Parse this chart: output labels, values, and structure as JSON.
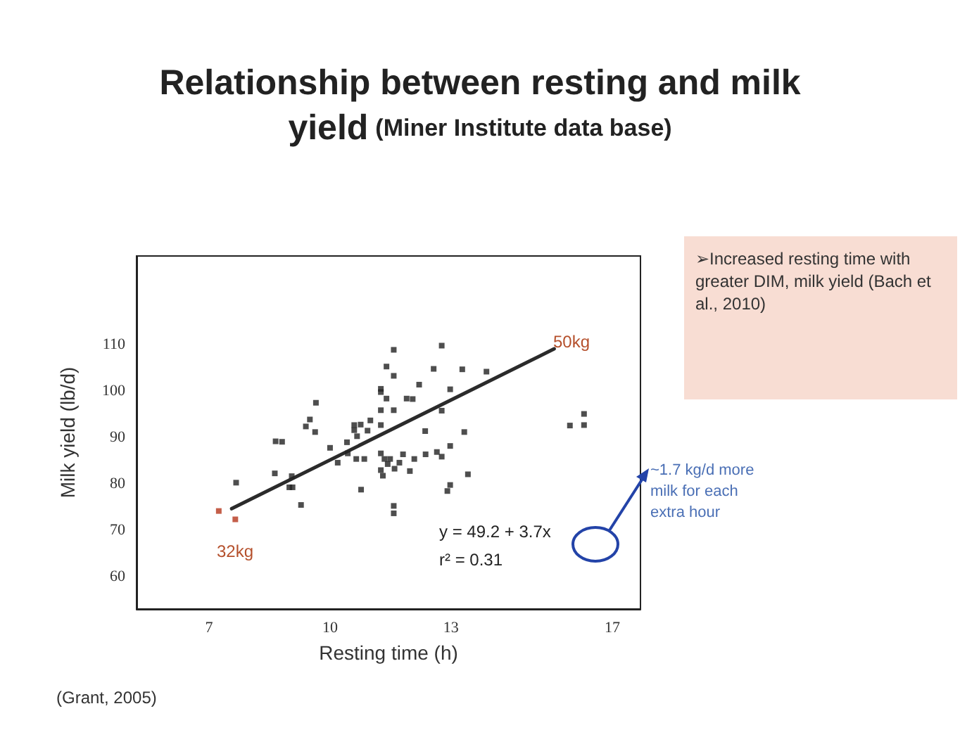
{
  "chart_data": {
    "type": "scatter",
    "title": "Relationship between resting and milk yield",
    "subtitle": "(Miner Institute data base)",
    "xlabel": "Resting time (h)",
    "ylabel": "Milk yield (lb/d)",
    "xlim": [
      5.2,
      17.7
    ],
    "xticks": [
      7,
      10,
      13,
      17
    ],
    "ylim": [
      53,
      129
    ],
    "yticks": [
      60,
      70,
      80,
      90,
      100,
      110
    ],
    "grid": false,
    "series": [
      {
        "marker": "square",
        "color": "#222222",
        "x": [
          11.58,
          12.77,
          11.4,
          11.58,
          12.57,
          13.28,
          13.88,
          12.21,
          12.98,
          11.26,
          11.26,
          11.4,
          11.9,
          12.05,
          9.65,
          11.26,
          11.58,
          12.77,
          9.5,
          9.4,
          9.63,
          11.0,
          10.6,
          10.76,
          10.6,
          10.93,
          11.26,
          12.36,
          13.33,
          15.95,
          16.3,
          16.3,
          10.67,
          8.65,
          8.81,
          10.42,
          10.0,
          10.44,
          10.65,
          10.85,
          10.19,
          11.26,
          11.35,
          11.49,
          11.81,
          12.09,
          12.37,
          12.65,
          12.77,
          12.98,
          11.43,
          11.6,
          11.72,
          11.26,
          11.31,
          11.98,
          13.42,
          12.98,
          12.91,
          10.77,
          8.63,
          9.05,
          8.99,
          9.07,
          7.67,
          9.28,
          11.58,
          11.58,
          7.24,
          7.65
        ],
        "values": [
          108.8,
          109.7,
          105.2,
          103.2,
          104.7,
          104.6,
          104.1,
          101.3,
          100.3,
          100.4,
          99.7,
          98.3,
          98.3,
          98.2,
          97.4,
          95.8,
          95.8,
          95.7,
          93.8,
          92.3,
          91.1,
          93.6,
          92.6,
          92.7,
          91.5,
          91.4,
          92.6,
          91.3,
          91.1,
          92.5,
          92.6,
          95.0,
          90.2,
          89.1,
          89.0,
          88.9,
          87.7,
          86.5,
          85.3,
          85.3,
          84.5,
          86.5,
          85.3,
          85.3,
          86.3,
          85.3,
          86.3,
          86.8,
          85.8,
          88.1,
          84.2,
          83.2,
          84.5,
          82.9,
          81.7,
          82.7,
          82.0,
          79.7,
          78.4,
          78.7,
          82.2,
          81.6,
          79.2,
          79.2,
          80.2,
          75.4,
          75.2,
          73.6,
          74.1,
          72.3
        ],
        "colors": [
          "#222222",
          "#222222",
          "#222222",
          "#222222",
          "#222222",
          "#222222",
          "#222222",
          "#222222",
          "#222222",
          "#222222",
          "#222222",
          "#222222",
          "#222222",
          "#222222",
          "#222222",
          "#222222",
          "#222222",
          "#222222",
          "#222222",
          "#222222",
          "#222222",
          "#222222",
          "#222222",
          "#222222",
          "#222222",
          "#222222",
          "#222222",
          "#222222",
          "#222222",
          "#222222",
          "#222222",
          "#222222",
          "#222222",
          "#222222",
          "#222222",
          "#222222",
          "#222222",
          "#222222",
          "#222222",
          "#222222",
          "#222222",
          "#222222",
          "#222222",
          "#222222",
          "#222222",
          "#222222",
          "#222222",
          "#222222",
          "#222222",
          "#222222",
          "#222222",
          "#222222",
          "#222222",
          "#222222",
          "#222222",
          "#222222",
          "#222222",
          "#222222",
          "#222222",
          "#222222",
          "#222222",
          "#222222",
          "#222222",
          "#222222",
          "#222222",
          "#222222",
          "#222222",
          "#222222",
          "#b5361c",
          "#b5361c"
        ]
      },
      {
        "type": "line",
        "color": "#2b2b2b",
        "x": [
          7.56,
          15.56
        ],
        "values": [
          74.6,
          109.0
        ]
      }
    ],
    "annotations": [
      "y = 49.2 + 3.7x",
      "r² = 0.31",
      "32kg",
      "50kg",
      "➢Increased resting time with greater DIM, milk yield (Bach et al., 2010)",
      "~1.7 kg/d more milk for each extra hour",
      "(Grant, 2005)"
    ]
  }
}
